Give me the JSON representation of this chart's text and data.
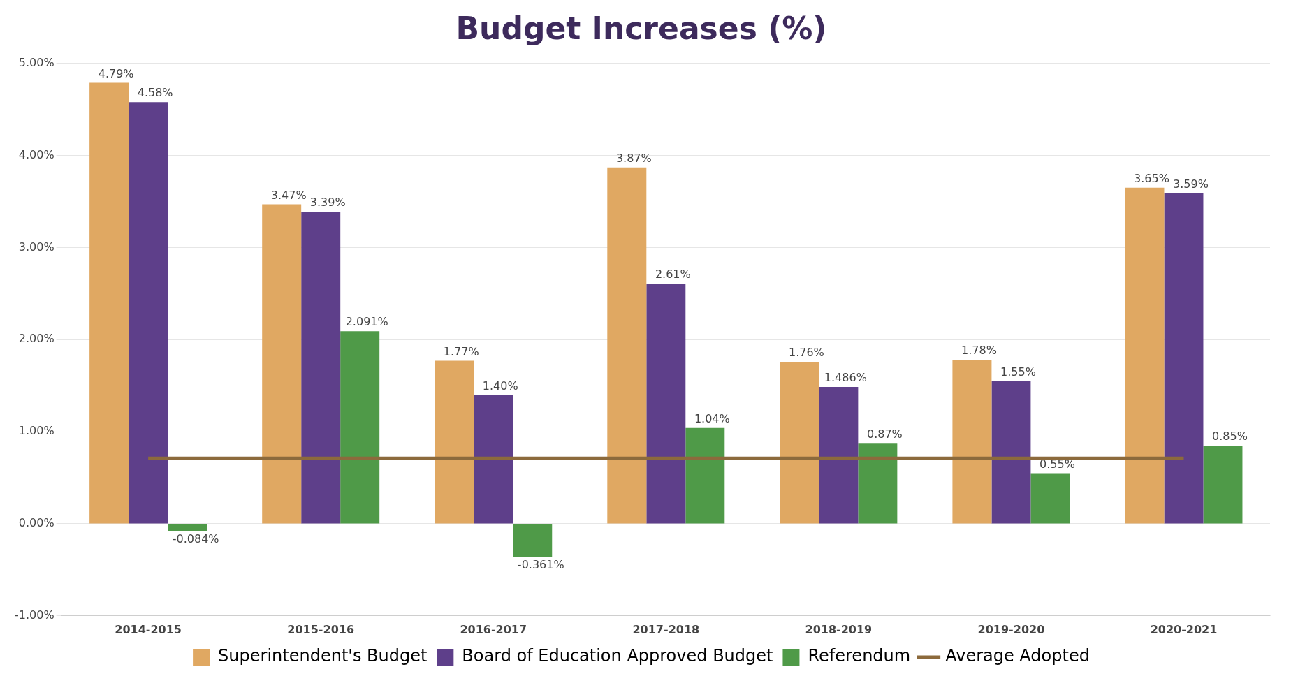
{
  "chart_data": {
    "type": "bar",
    "title": "Budget Increases (%)",
    "categories": [
      "2014-2015",
      "2015-2016",
      "2016-2017",
      "2017-2018",
      "2018-2019",
      "2019-2020",
      "2020-2021"
    ],
    "series": [
      {
        "name": "Superintendent's Budget",
        "color": "#e0a862",
        "values": [
          4.79,
          3.47,
          1.77,
          3.87,
          1.76,
          1.78,
          3.65
        ],
        "value_labels": [
          "4.79%",
          "3.47%",
          "1.77%",
          "3.87%",
          "1.76%",
          "1.78%",
          "3.65%"
        ]
      },
      {
        "name": "Board of Education Approved Budget",
        "color": "#5e3f8a",
        "values": [
          4.58,
          3.39,
          1.4,
          2.61,
          1.486,
          1.55,
          3.59
        ],
        "value_labels": [
          "4.58%",
          "3.39%",
          "1.40%",
          "2.61%",
          "1.486%",
          "1.55%",
          "3.59%"
        ]
      },
      {
        "name": "Referendum",
        "color": "#4f9a48",
        "values": [
          -0.084,
          2.091,
          -0.361,
          1.04,
          0.87,
          0.55,
          0.85
        ],
        "value_labels": [
          "-0.084%",
          "2.091%",
          "-0.361%",
          "1.04%",
          "0.87%",
          "0.55%",
          "0.85%"
        ]
      },
      {
        "name": "Average Adopted",
        "type": "line",
        "color": "#8c6a3c",
        "values": [
          0.71,
          0.71,
          0.71,
          0.71,
          0.71,
          0.71,
          0.71
        ]
      }
    ],
    "ylim": [
      -1,
      5
    ],
    "yticks": [
      {
        "value": -1,
        "label": "-1.00%"
      },
      {
        "value": 0,
        "label": "0.00%"
      },
      {
        "value": 1,
        "label": "1.00%"
      },
      {
        "value": 2,
        "label": "2.00%"
      },
      {
        "value": 3,
        "label": "3.00%"
      },
      {
        "value": 4,
        "label": "4.00%"
      },
      {
        "value": 5,
        "label": "5.00%"
      }
    ],
    "grid": "y",
    "legend": "bottom",
    "marker": "none"
  }
}
